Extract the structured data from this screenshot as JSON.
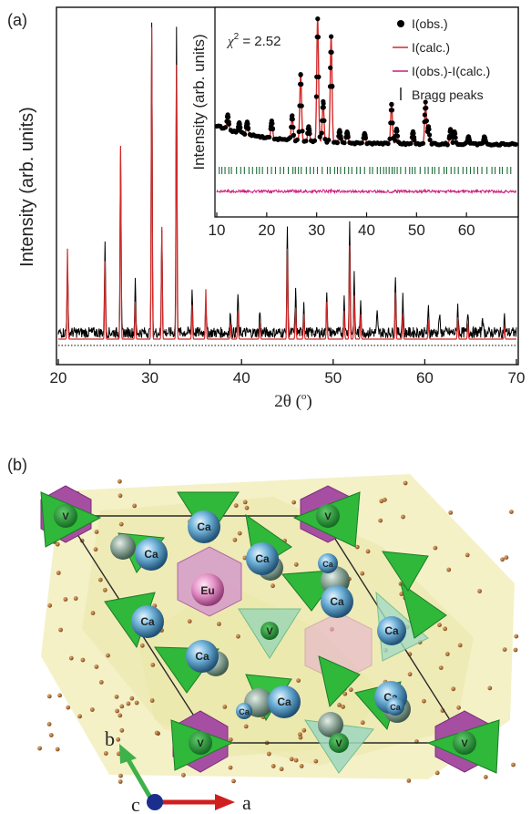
{
  "panel_a": {
    "label": "(a)",
    "ylabel": "Intensity (arb. units)",
    "xlabel": "2θ (°)",
    "xlabel_main": "2θ (",
    "xlabel_unit": "o",
    "xlabel_close": ")",
    "inset": {
      "chi_label": "χ",
      "chi_sup": "2",
      "chi_value": " = 2.52",
      "ylabel": "Intensity (arb. units)",
      "legend": [
        {
          "label": "I(obs.)",
          "marker": "dot",
          "color": "#000000"
        },
        {
          "label": "I(calc.)",
          "marker": "line",
          "color": "#d42a2a"
        },
        {
          "label": "I(obs.)-I(calc.)",
          "marker": "line",
          "color": "#cc1f7a"
        },
        {
          "label": "Bragg peaks",
          "marker": "tick",
          "color": "#000000"
        }
      ]
    }
  },
  "chart_data": [
    {
      "type": "line",
      "xlabel": "2θ (°)",
      "ylabel": "Intensity (arb. units)",
      "xlim": [
        20,
        70
      ],
      "xticks": [
        20,
        30,
        40,
        50,
        60,
        70
      ],
      "yticks_shown": false,
      "series": [
        {
          "name": "observed",
          "color": "#000000",
          "peaks": [
            [
              21.0,
              0.22
            ],
            [
              25.1,
              0.3
            ],
            [
              26.8,
              0.6
            ],
            [
              28.4,
              0.16
            ],
            [
              30.2,
              1.0
            ],
            [
              31.3,
              0.34
            ],
            [
              32.9,
              0.97
            ],
            [
              34.6,
              0.14
            ],
            [
              36.1,
              0.1
            ],
            [
              38.8,
              0.07
            ],
            [
              39.6,
              0.12
            ],
            [
              42.0,
              0.07
            ],
            [
              45.0,
              0.35
            ],
            [
              45.9,
              0.13
            ],
            [
              46.8,
              0.1
            ],
            [
              49.3,
              0.14
            ],
            [
              51.2,
              0.12
            ],
            [
              51.8,
              0.37
            ],
            [
              52.3,
              0.18
            ],
            [
              53.0,
              0.11
            ],
            [
              54.8,
              0.06
            ],
            [
              56.8,
              0.19
            ],
            [
              57.6,
              0.12
            ],
            [
              60.4,
              0.08
            ],
            [
              61.6,
              0.06
            ],
            [
              63.6,
              0.09
            ],
            [
              64.7,
              0.07
            ],
            [
              66.3,
              0.06
            ],
            [
              68.7,
              0.05
            ]
          ]
        },
        {
          "name": "calculated",
          "color": "#d42a2a",
          "peaks": [
            [
              21.0,
              0.29
            ],
            [
              25.1,
              0.25
            ],
            [
              26.8,
              0.62
            ],
            [
              28.4,
              0.12
            ],
            [
              30.2,
              1.0
            ],
            [
              31.3,
              0.36
            ],
            [
              32.9,
              0.88
            ],
            [
              34.6,
              0.11
            ],
            [
              36.1,
              0.16
            ],
            [
              38.8,
              0.05
            ],
            [
              39.6,
              0.09
            ],
            [
              42.0,
              0.05
            ],
            [
              45.0,
              0.29
            ],
            [
              45.9,
              0.1
            ],
            [
              46.8,
              0.08
            ],
            [
              49.3,
              0.12
            ],
            [
              51.2,
              0.09
            ],
            [
              51.8,
              0.3
            ],
            [
              52.3,
              0.14
            ],
            [
              53.0,
              0.08
            ],
            [
              56.8,
              0.15
            ],
            [
              57.6,
              0.08
            ],
            [
              60.4,
              0.06
            ],
            [
              63.6,
              0.07
            ],
            [
              64.7,
              0.05
            ],
            [
              68.7,
              0.04
            ]
          ]
        }
      ],
      "background_line": "dotted"
    },
    {
      "type": "scatter",
      "xlim": [
        10,
        70
      ],
      "xticks": [
        10,
        20,
        30,
        40,
        50,
        60
      ],
      "ylabel": "Intensity (arb. units)",
      "annotation": "χ2 = 2.52",
      "series": [
        {
          "name": "I(obs.)",
          "color": "#000000",
          "kind": "points"
        },
        {
          "name": "I(calc.)",
          "color": "#d42a2a",
          "kind": "line"
        },
        {
          "name": "I(obs.)-I(calc.)",
          "color": "#cc1f7a",
          "kind": "line"
        },
        {
          "name": "Bragg peaks",
          "color": "#1d6b3a",
          "kind": "ticks"
        }
      ],
      "peaks": [
        [
          12.2,
          0.12
        ],
        [
          14.5,
          0.08
        ],
        [
          16.1,
          0.1
        ],
        [
          21.0,
          0.14
        ],
        [
          25.1,
          0.2
        ],
        [
          26.8,
          0.54
        ],
        [
          28.4,
          0.12
        ],
        [
          30.2,
          1.0
        ],
        [
          31.3,
          0.33
        ],
        [
          32.9,
          0.86
        ],
        [
          34.6,
          0.1
        ],
        [
          36.1,
          0.09
        ],
        [
          39.6,
          0.08
        ],
        [
          45.0,
          0.32
        ],
        [
          46.0,
          0.12
        ],
        [
          49.3,
          0.1
        ],
        [
          51.8,
          0.34
        ],
        [
          52.4,
          0.14
        ],
        [
          56.8,
          0.12
        ],
        [
          57.6,
          0.1
        ],
        [
          60.4,
          0.06
        ],
        [
          63.6,
          0.06
        ]
      ]
    }
  ],
  "panel_b": {
    "label": "(b)",
    "atoms": [
      {
        "label": "V"
      },
      {
        "label": "V"
      },
      {
        "label": "V"
      },
      {
        "label": "V"
      },
      {
        "label": "V"
      },
      {
        "label": "V"
      },
      {
        "label": "Ca"
      },
      {
        "label": "Ca"
      },
      {
        "label": "Ca"
      },
      {
        "label": "Ca"
      },
      {
        "label": "Ca"
      },
      {
        "label": "Ca"
      },
      {
        "label": "Ca"
      },
      {
        "label": "Ca"
      },
      {
        "label": "Ca"
      },
      {
        "label": "Ca"
      },
      {
        "label": "Ca"
      },
      {
        "label": "Ca"
      },
      {
        "label": "Eu"
      }
    ],
    "axes": {
      "a": "a",
      "b": "b",
      "c": "c"
    },
    "colors": {
      "ca": "#6fb2d9",
      "eu": "#e592c8",
      "v_tetra": "#2fb83a",
      "eu_octa": "#a64fa2",
      "background": "#e9e59a",
      "oxygen": "#a8611d"
    }
  }
}
